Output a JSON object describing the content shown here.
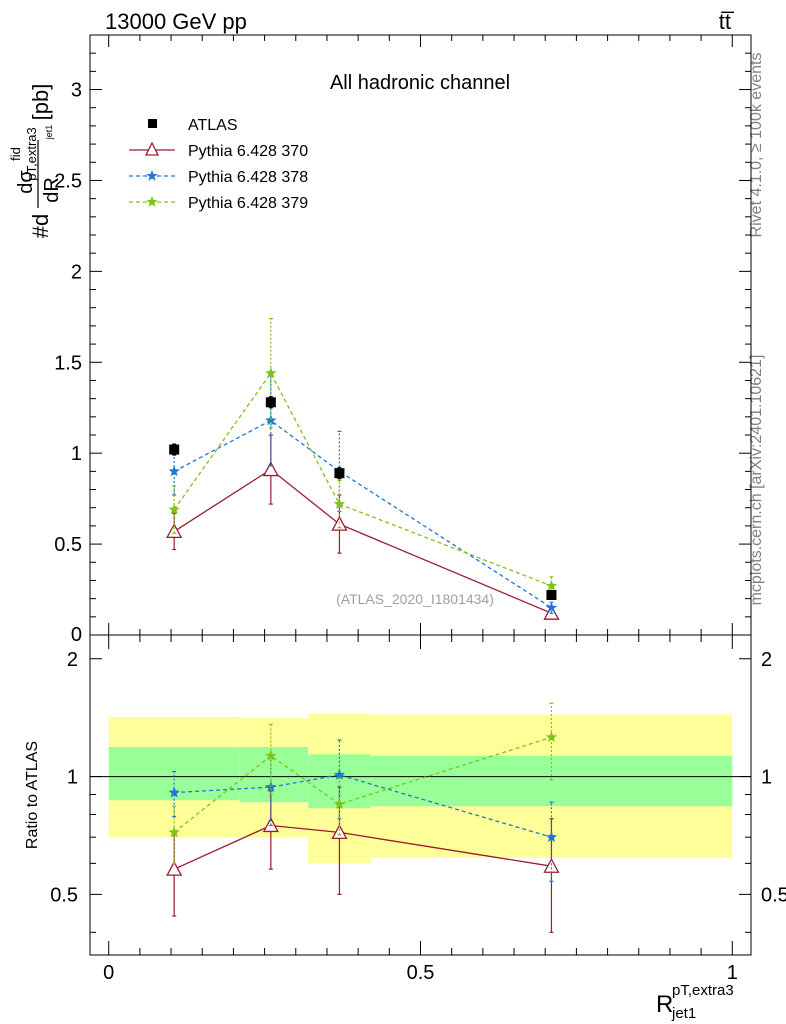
{
  "header": {
    "energy_label": "13000 GeV pp",
    "process_label": "tt̅"
  },
  "side_text": {
    "rivet": "Rivet 4.1.0, ≥ 100k events",
    "mcplots": "mcplots.cern.ch [arXiv:2401.10621]"
  },
  "chart_data": [
    {
      "type": "scatter",
      "panel": "main",
      "title": "All hadronic channel",
      "analysis_label": "(ATLAS_2020_I1801434)",
      "ylabel": "#d dσfid / dR pT,extra3 jet1 [pb]",
      "ylabel_parts": {
        "prefix": "#d",
        "num": "dσ",
        "num_sup": "fid",
        "den": "dR",
        "den_sub": "pT,extra3",
        "den_sub2": "jet1",
        "unit": "[pb]"
      },
      "xlim": [
        -0.03,
        1.03
      ],
      "ylim": [
        0,
        3.3
      ],
      "yticks": [
        0.5,
        1,
        1.5,
        2,
        2.5,
        3
      ],
      "ytick_labels": [
        "0.5",
        "1",
        "1.5",
        "2",
        "2.5",
        "3"
      ],
      "y_zero_label": "0",
      "x": [
        0.105,
        0.26,
        0.37,
        0.71
      ],
      "series": [
        {
          "name": "ATLAS",
          "color": "#000000",
          "marker": "square",
          "line": "none",
          "values": [
            1.02,
            1.28,
            0.89,
            0.22
          ],
          "err": [
            0.03,
            0.03,
            0.03,
            0.02
          ]
        },
        {
          "name": "Pythia 6.428 370",
          "color": "#9b1b30",
          "marker": "triangle",
          "line": "solid",
          "values": [
            0.57,
            0.91,
            0.61,
            0.12
          ],
          "err": [
            0.1,
            0.19,
            0.16,
            0.01
          ]
        },
        {
          "name": "Pythia 6.428 378",
          "color": "#1f77d4",
          "marker": "star",
          "line": "dashed",
          "values": [
            0.9,
            1.18,
            0.9,
            0.15
          ],
          "err": [
            0.13,
            0.25,
            0.22,
            0.03
          ]
        },
        {
          "name": "Pythia 6.428 379",
          "color": "#80c21a",
          "marker": "star",
          "line": "dashed",
          "values": [
            0.69,
            1.44,
            0.72,
            0.27
          ],
          "err": [
            0.13,
            0.3,
            0.13,
            0.05
          ]
        }
      ]
    },
    {
      "type": "scatter",
      "panel": "ratio",
      "ylabel": "Ratio to ATLAS",
      "xlabel": "R pT,extra3 jet1",
      "xlabel_parts": {
        "base": "R",
        "sup": "pT,extra3",
        "sub": "jet1"
      },
      "xlim": [
        -0.03,
        1.03
      ],
      "ylim": [
        0.35,
        2.3
      ],
      "yticks": [
        0.5,
        1,
        2
      ],
      "ytick_labels": [
        "0.5",
        "1",
        "2"
      ],
      "xticks": [
        0,
        0.5,
        1
      ],
      "xtick_labels": [
        "0",
        "0.5",
        "1"
      ],
      "bands": [
        {
          "x0": 0.0,
          "x1": 0.21,
          "yellow": [
            0.7,
            1.42
          ],
          "green": [
            0.87,
            1.19
          ]
        },
        {
          "x0": 0.21,
          "x1": 0.32,
          "yellow": [
            0.7,
            1.41
          ],
          "green": [
            0.86,
            1.19
          ]
        },
        {
          "x0": 0.32,
          "x1": 0.42,
          "yellow": [
            0.6,
            1.45
          ],
          "green": [
            0.83,
            1.14
          ]
        },
        {
          "x0": 0.42,
          "x1": 1.0,
          "yellow": [
            0.62,
            1.44
          ],
          "green": [
            0.84,
            1.13
          ]
        }
      ],
      "series": [
        {
          "name": "Pythia 6.428 370",
          "color": "#9b1b30",
          "marker": "triangle",
          "line": "solid",
          "values": [
            0.58,
            0.75,
            0.72,
            0.59
          ],
          "err": [
            0.14,
            0.17,
            0.22,
            0.19
          ]
        },
        {
          "name": "Pythia 6.428 378",
          "color": "#1f77d4",
          "marker": "star",
          "line": "dashed",
          "values": [
            0.91,
            0.94,
            1.01,
            0.7
          ],
          "err": [
            0.12,
            0.19,
            0.23,
            0.16
          ]
        },
        {
          "name": "Pythia 6.428 379",
          "color": "#80c21a",
          "marker": "star",
          "line": "dashed",
          "values": [
            0.72,
            1.13,
            0.85,
            1.26
          ],
          "err": [
            0.12,
            0.23,
            0.14,
            0.28
          ]
        }
      ]
    }
  ]
}
